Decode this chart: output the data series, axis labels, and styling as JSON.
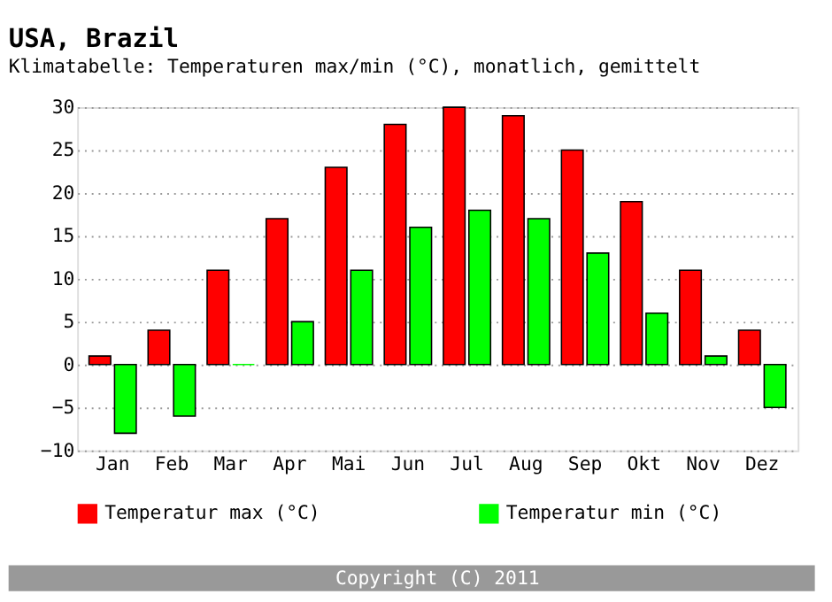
{
  "chart_data": {
    "type": "bar",
    "title": "USA, Brazil",
    "subtitle": "Klimatabelle: Temperaturen max/min (°C), monatlich, gemittelt",
    "categories": [
      "Jan",
      "Feb",
      "Mar",
      "Apr",
      "Mai",
      "Jun",
      "Jul",
      "Aug",
      "Sep",
      "Okt",
      "Nov",
      "Dez"
    ],
    "series": [
      {
        "name": "Temperatur max (°C)",
        "color": "#ff0000",
        "values": [
          1,
          4,
          11,
          17,
          23,
          28,
          30,
          29,
          25,
          19,
          11,
          4
        ]
      },
      {
        "name": "Temperatur min (°C)",
        "color": "#00ff00",
        "values": [
          -8,
          -6,
          0,
          5,
          11,
          16,
          18,
          17,
          13,
          6,
          1,
          -5
        ]
      }
    ],
    "ylim": [
      -10,
      30
    ],
    "yticks": [
      -10,
      -5,
      0,
      5,
      10,
      15,
      20,
      25,
      30
    ],
    "grid": "y",
    "legend": "bottom",
    "annotations": [
      "Copyright (C) 2011"
    ]
  }
}
